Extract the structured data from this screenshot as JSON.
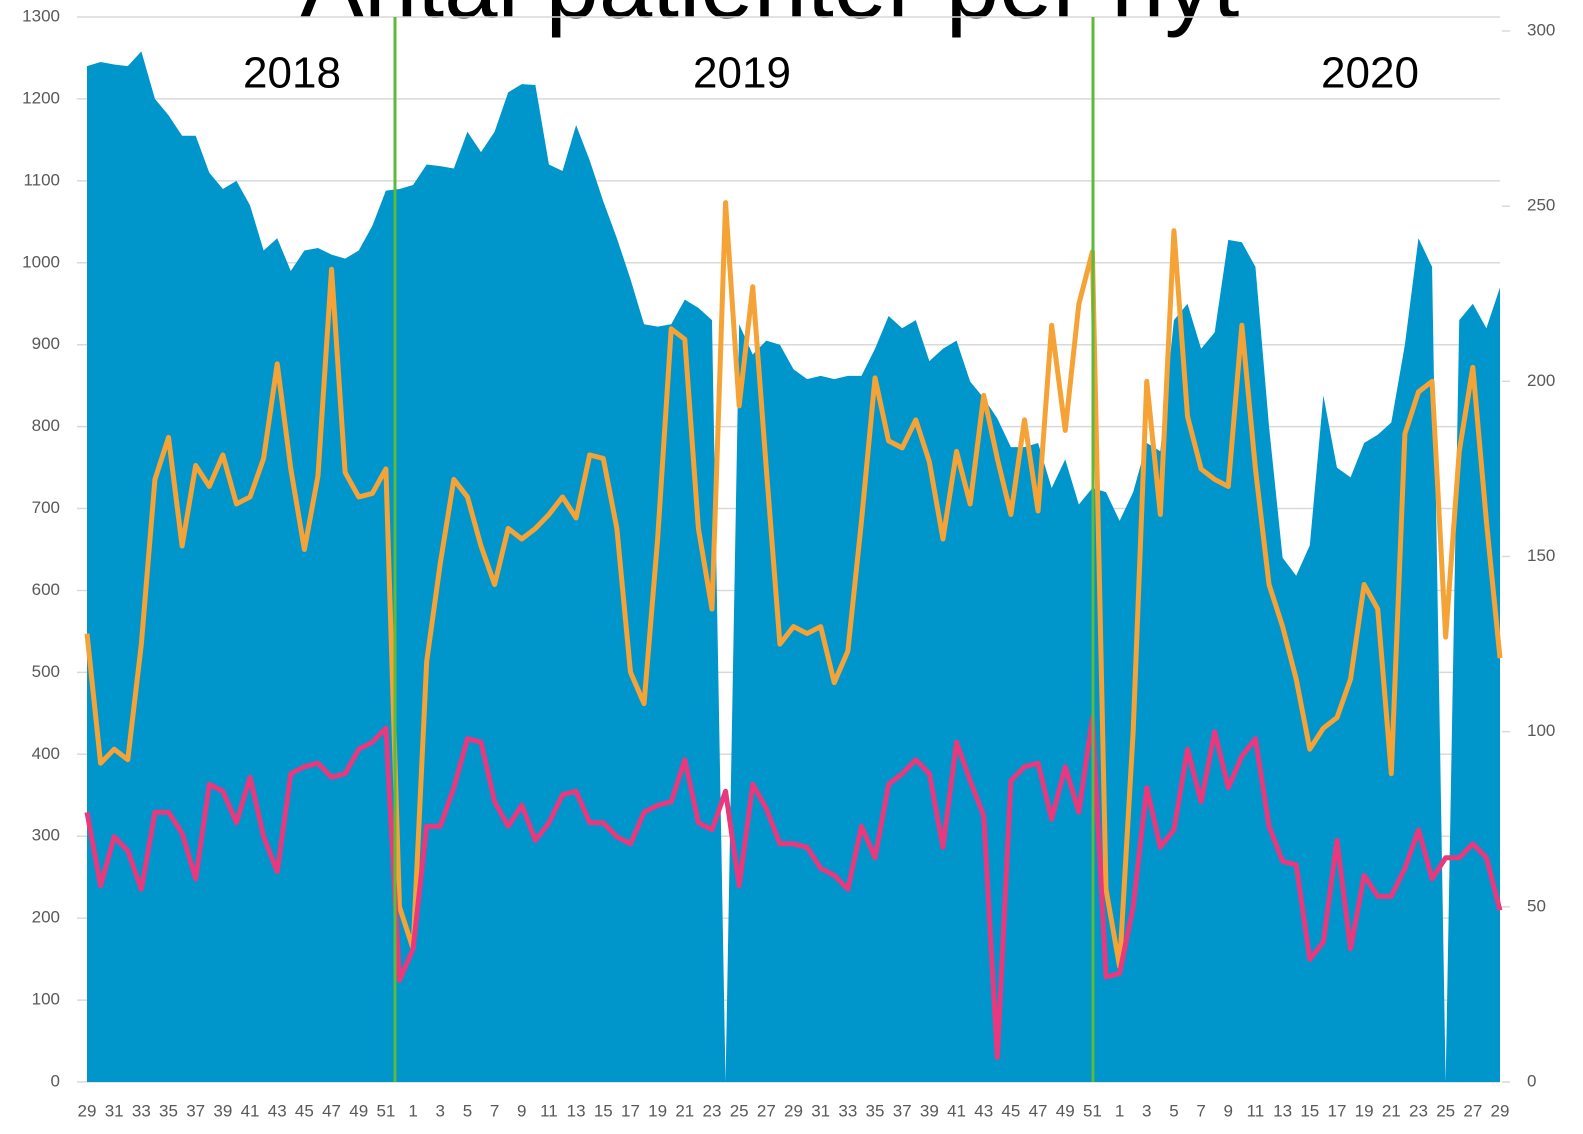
{
  "chart_data": {
    "type": "area_line",
    "title": "Antal patienter per nyt",
    "annotations": [
      "2018",
      "2019",
      "2020"
    ],
    "categories": [
      "29",
      null,
      "31",
      null,
      "33",
      null,
      "35",
      null,
      "37",
      null,
      "39",
      null,
      "41",
      null,
      "43",
      null,
      "45",
      null,
      "47",
      null,
      "49",
      null,
      "51",
      null,
      "1",
      null,
      "3",
      null,
      "5",
      null,
      "7",
      null,
      "9",
      null,
      "11",
      null,
      "13",
      null,
      "15",
      null,
      "17",
      null,
      "19",
      null,
      "21",
      null,
      "23",
      null,
      "25",
      null,
      "27",
      null,
      "29",
      null,
      "31",
      null,
      "33",
      null,
      "35",
      null,
      "37",
      null,
      "39",
      null,
      "41",
      null,
      "43",
      null,
      "45",
      null,
      "47",
      null,
      "49",
      null,
      "51",
      null,
      "1",
      null,
      "3",
      null,
      "5",
      null,
      "7",
      null,
      "9",
      null,
      "11",
      null,
      "13",
      null,
      "15",
      null,
      "17",
      null,
      "19",
      null,
      "21",
      null,
      "23",
      null,
      "25",
      null,
      "27",
      null,
      "29"
    ],
    "series": [
      {
        "kind": "area",
        "color": "#0096cc",
        "values": [
          1240,
          1245,
          1242,
          1240,
          1258,
          1200,
          1180,
          1155,
          1155,
          1110,
          1090,
          1100,
          1070,
          1015,
          1030,
          990,
          1015,
          1018,
          1010,
          1005,
          1015,
          1045,
          1088,
          1090,
          1095,
          1120,
          1118,
          1115,
          1160,
          1135,
          1160,
          1208,
          1218,
          1217,
          1120,
          1112,
          1168,
          1125,
          1075,
          1030,
          980,
          925,
          922,
          925,
          955,
          945,
          930,
          0,
          925,
          888,
          905,
          900,
          870,
          858,
          862,
          858,
          862,
          862,
          895,
          935,
          920,
          930,
          880,
          895,
          905,
          855,
          835,
          810,
          775,
          775,
          780,
          725,
          760,
          705,
          725,
          720,
          685,
          720,
          780,
          770,
          930,
          950,
          895,
          915,
          1028,
          1025,
          995,
          800,
          640,
          618,
          655,
          838,
          750,
          738,
          780,
          790,
          805,
          900,
          1030,
          995,
          0,
          930,
          950,
          920,
          970
        ]
      },
      {
        "kind": "line",
        "axis": "y2",
        "color": "#f5a236",
        "values": [
          128,
          91,
          95,
          92,
          125,
          172,
          184,
          153,
          176,
          170,
          179,
          165,
          167,
          178,
          205,
          175,
          152,
          173,
          232,
          174,
          167,
          168,
          175,
          50,
          38,
          120,
          148,
          172,
          167,
          153,
          142,
          158,
          155,
          158,
          162,
          167,
          161,
          179,
          178,
          158,
          117,
          108,
          155,
          215,
          212,
          158,
          135,
          251,
          193,
          227,
          175,
          125,
          130,
          128,
          130,
          114,
          123,
          160,
          201,
          183,
          181,
          189,
          177,
          155,
          180,
          165,
          196,
          178,
          162,
          189,
          163,
          216,
          186,
          222,
          237,
          55,
          33,
          100,
          200,
          162,
          243,
          190,
          175,
          172,
          170,
          216,
          175,
          142,
          130,
          115,
          95,
          101,
          104,
          115,
          142,
          135,
          88,
          185,
          197,
          200,
          127,
          180,
          204,
          160,
          121
        ]
      },
      {
        "kind": "line",
        "axis": "y2",
        "color": "#e8387e",
        "values": [
          77,
          56,
          70,
          66,
          55,
          77,
          77,
          71,
          58,
          85,
          83,
          74,
          87,
          70,
          60,
          88,
          90,
          91,
          87,
          88,
          95,
          97,
          101,
          29,
          38,
          73,
          73,
          84,
          98,
          97,
          80,
          73,
          79,
          69,
          74,
          82,
          83,
          74,
          74,
          70,
          68,
          77,
          79,
          80,
          92,
          74,
          72,
          83,
          56,
          85,
          78,
          68,
          68,
          67,
          61,
          59,
          55,
          73,
          64,
          85,
          88,
          92,
          88,
          67,
          97,
          86,
          76,
          7,
          86,
          90,
          91,
          75,
          90,
          77,
          104,
          30,
          31,
          50,
          84,
          67,
          72,
          95,
          80,
          100,
          84,
          93,
          98,
          73,
          63,
          62,
          35,
          40,
          69,
          38,
          59,
          53,
          53,
          61,
          72,
          58,
          64,
          64,
          68,
          64,
          49
        ]
      }
    ],
    "ylim": [
      0,
      1300
    ],
    "yticks": [
      0,
      100,
      200,
      300,
      400,
      500,
      600,
      700,
      800,
      900,
      1000,
      1100,
      1200,
      1300
    ],
    "y2lim": [
      0,
      304
    ],
    "y2ticks": [
      0,
      50,
      100,
      150,
      200,
      250,
      300
    ],
    "grid": true
  }
}
